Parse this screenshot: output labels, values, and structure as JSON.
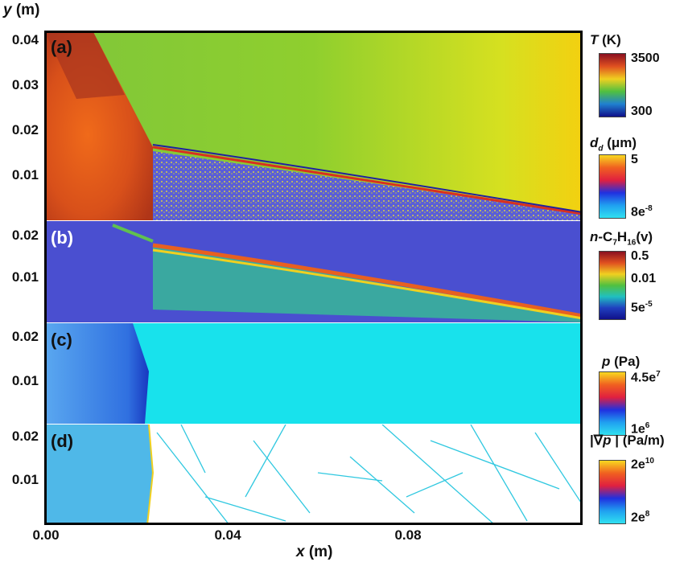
{
  "axes": {
    "y_title": "y (m)",
    "x_title": "x (m)",
    "y_ticks_a": [
      "0.04",
      "0.03",
      "0.02",
      "0.01"
    ],
    "y_ticks_b": [
      "0.02",
      "0.01"
    ],
    "y_ticks_c": [
      "0.02",
      "0.01"
    ],
    "y_ticks_d": [
      "0.02",
      "0.01"
    ],
    "x_ticks": [
      "0.00",
      "0.04",
      "0.08"
    ]
  },
  "panels": [
    {
      "letter": "(a)",
      "field": "Temperature"
    },
    {
      "letter": "(b)",
      "field": "n-C7H16 vapor"
    },
    {
      "letter": "(c)",
      "field": "Pressure"
    },
    {
      "letter": "(d)",
      "field": "Pressure gradient"
    }
  ],
  "colorbars": {
    "T": {
      "title_var": "T",
      "title_unit": "(K)",
      "max": "3500",
      "min": "300"
    },
    "dd": {
      "title_var": "d",
      "title_sub": "d",
      "title_unit": "(μm)",
      "max": "5",
      "min_base": "8e",
      "min_exp": "-8"
    },
    "fuel": {
      "title_pre": "n",
      "title_main": "-C",
      "sub1": "7",
      "mid": "H",
      "sub2": "16",
      "title_unit": "(v)",
      "max": "0.5",
      "mid_val": "0.01",
      "min": "5e",
      "min_exp": "-5"
    },
    "p": {
      "title_var": "p",
      "title_unit": "(Pa)",
      "max_base": "4.5e",
      "max_exp": "7",
      "min_base": "1e",
      "min_exp": "6"
    },
    "gradp": {
      "title_pre": "|∇",
      "title_var": "p",
      "title_post": " | (Pa/m)",
      "max_base": "2e",
      "max_exp": "10",
      "min_base": "2e",
      "min_exp": "8"
    }
  }
}
